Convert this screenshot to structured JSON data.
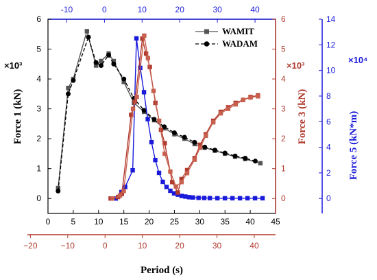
{
  "chart_data": {
    "type": "line",
    "xlabel": "Period (s)",
    "axes": {
      "bottom": {
        "ticks": [
          0,
          5,
          10,
          15,
          20,
          25,
          30,
          35,
          40,
          45
        ],
        "range": [
          0,
          45
        ],
        "color": "#000000"
      },
      "top": {
        "ticks": [
          -10,
          0,
          10,
          20,
          30,
          40
        ],
        "range": [
          -15,
          45.45
        ],
        "color": "#1a1adb"
      },
      "bottom2": {
        "ticks": [
          -20,
          -10,
          0,
          10,
          20,
          30,
          40
        ],
        "range": [
          -20.8,
          45.7
        ],
        "color": "#b03a2e"
      },
      "left": {
        "label": "Force 1 (kN)",
        "multiplier": "×10³",
        "ticks": [
          0,
          1,
          2,
          3,
          4,
          5,
          6
        ],
        "range": [
          -0.5,
          6
        ],
        "color": "#000000"
      },
      "right1": {
        "label": "Force 3 (kN)",
        "multiplier": "×10³",
        "ticks": [
          0,
          1,
          2,
          3,
          4,
          5,
          6
        ],
        "range": [
          -0.5,
          6
        ],
        "color": "#b03a2e"
      },
      "right2": {
        "label": "Force 5 (kN*m)",
        "multiplier": "×10⁴",
        "ticks": [
          0,
          2,
          4,
          6,
          8,
          10,
          12,
          14
        ],
        "range": [
          -1.167,
          14
        ],
        "color": "#1a1adb"
      }
    },
    "legend": {
      "placement": "top-right",
      "entries": [
        "WAMIT",
        "WADAM"
      ]
    },
    "series": [
      {
        "name": "WAMIT",
        "axis": "left",
        "marker": "square",
        "color": "#555555",
        "x": [
          2,
          4,
          5,
          7.7,
          9.5,
          10.5,
          12,
          13,
          15,
          17,
          19,
          21,
          23,
          25,
          27,
          29,
          31,
          33,
          35,
          37,
          39,
          42
        ],
        "y": [
          0.35,
          3.7,
          4.0,
          5.6,
          4.45,
          4.6,
          4.85,
          4.6,
          3.9,
          3.2,
          2.9,
          2.62,
          2.35,
          2.15,
          2.0,
          1.82,
          1.7,
          1.6,
          1.5,
          1.4,
          1.32,
          1.18
        ]
      },
      {
        "name": "WADAM",
        "axis": "left",
        "marker": "circle",
        "color": "#000000",
        "x": [
          2,
          4,
          5,
          8,
          9.5,
          10.5,
          12,
          13,
          15,
          17,
          19,
          21,
          23,
          25,
          27,
          29,
          31,
          33,
          35,
          37,
          39,
          41
        ],
        "y": [
          0.25,
          3.5,
          3.95,
          5.4,
          4.55,
          4.45,
          4.8,
          4.5,
          4.0,
          3.35,
          2.95,
          2.65,
          2.4,
          2.2,
          2.05,
          1.88,
          1.72,
          1.62,
          1.52,
          1.42,
          1.35,
          1.25
        ]
      },
      {
        "name": "",
        "axis": "right2",
        "xaxis": "top",
        "marker": "square",
        "color": "#1a1adb",
        "x": [
          3,
          4.5,
          5.5,
          7.5,
          8.5,
          9.5,
          10.5,
          11.5,
          12.5,
          13.5,
          14.5,
          15.5,
          16.5,
          17.5,
          18.5,
          19.5,
          20.5,
          21.5,
          22.5,
          23.5,
          25,
          26.5,
          28,
          30,
          32,
          34,
          36,
          38,
          40,
          42
        ],
        "y": [
          0,
          0.5,
          0.9,
          2.2,
          12.5,
          10.2,
          8.3,
          6.2,
          4.4,
          3.0,
          2.0,
          1.3,
          0.9,
          0.6,
          0.4,
          0.3,
          0.2,
          0.15,
          0.1,
          0.08,
          0.05,
          0.04,
          0.03,
          0.02,
          0.02,
          0.02,
          0.02,
          0.02,
          0.02,
          0.02
        ]
      },
      {
        "name": "",
        "axis": "right1",
        "xaxis": "bottom2",
        "marker": "square",
        "color": "#b03a2e",
        "x": [
          1.5,
          3.5,
          4.5,
          7,
          8,
          10,
          11,
          12,
          13.5,
          15,
          16,
          18,
          19.5,
          20.5,
          22,
          24,
          25.5,
          27,
          29,
          31,
          33,
          35,
          37,
          39,
          41
        ],
        "y": [
          0,
          0.05,
          0.15,
          2.8,
          3.25,
          5.35,
          4.85,
          4.4,
          3.2,
          2.3,
          1.85,
          0.55,
          0.2,
          0.65,
          0.95,
          1.35,
          1.8,
          2.15,
          2.6,
          2.9,
          3.05,
          3.2,
          3.3,
          3.4,
          3.45
        ]
      },
      {
        "name": "",
        "axis": "right1",
        "xaxis": "bottom2",
        "marker": "square",
        "color": "#c7604f",
        "x": [
          2,
          4,
          5,
          7.5,
          8.5,
          10.5,
          11.5,
          13,
          14.5,
          16,
          17.5,
          19,
          20.5,
          22,
          24,
          25.5,
          27,
          29,
          31,
          33,
          35,
          37,
          39,
          41
        ],
        "y": [
          0,
          0.1,
          0.25,
          3.0,
          3.4,
          5.45,
          4.7,
          3.6,
          2.6,
          1.5,
          0.9,
          0.4,
          0.55,
          0.85,
          1.3,
          1.7,
          2.1,
          2.55,
          2.85,
          3.0,
          3.15,
          3.3,
          3.38,
          3.42
        ]
      }
    ]
  }
}
